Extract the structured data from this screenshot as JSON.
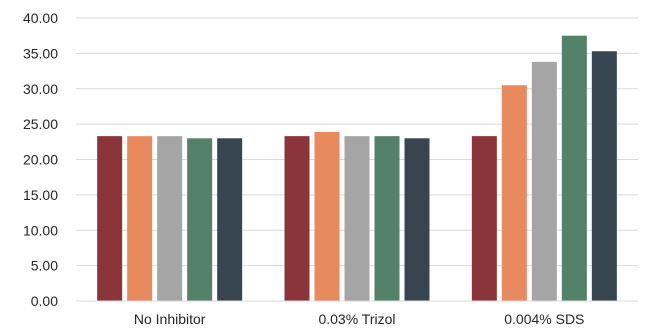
{
  "chart_data": {
    "type": "bar",
    "categories": [
      "No Inhibitor",
      "0.03% Trizol",
      "0.004% SDS"
    ],
    "series": [
      {
        "values": [
          23.3,
          23.3,
          23.3
        ],
        "color": "#8b3439"
      },
      {
        "values": [
          23.3,
          23.9,
          30.5
        ],
        "color": "#e8895e"
      },
      {
        "values": [
          23.3,
          23.3,
          33.8
        ],
        "color": "#a5a5a5"
      },
      {
        "values": [
          23.0,
          23.3,
          37.5
        ],
        "color": "#548169"
      },
      {
        "values": [
          23.0,
          23.0,
          35.3
        ],
        "color": "#36454f"
      }
    ],
    "ylim": [
      0,
      40
    ],
    "ytick_step": 5,
    "ytick_labels": [
      "0.00",
      "5.00",
      "10.00",
      "15.00",
      "20.00",
      "25.00",
      "30.00",
      "35.00",
      "40.00"
    ],
    "grid": true,
    "legend": "none"
  }
}
